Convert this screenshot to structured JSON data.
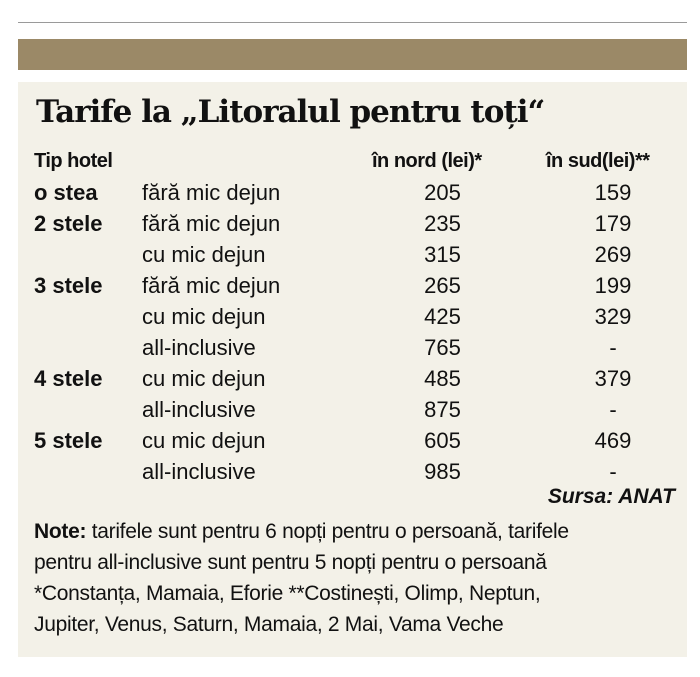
{
  "title": "Tarife la „Litoralul pentru toți“",
  "headers": {
    "type": "Tip hotel",
    "north": "în nord (lei)*",
    "south": "în sud(lei)**"
  },
  "rows": [
    {
      "type": "o stea",
      "option": "fără mic dejun",
      "north": "205",
      "south": "159"
    },
    {
      "type": "2 stele",
      "option": "fără mic dejun",
      "north": "235",
      "south": "179"
    },
    {
      "type": "",
      "option": "cu mic dejun",
      "north": "315",
      "south": "269"
    },
    {
      "type": "3 stele",
      "option": "fără mic dejun",
      "north": "265",
      "south": "199"
    },
    {
      "type": "",
      "option": "cu mic dejun",
      "north": "425",
      "south": "329"
    },
    {
      "type": "",
      "option": "all-inclusive",
      "north": "765",
      "south": "-"
    },
    {
      "type": "4 stele",
      "option": "cu mic dejun",
      "north": "485",
      "south": "379"
    },
    {
      "type": "",
      "option": "all-inclusive",
      "north": "875",
      "south": "-"
    },
    {
      "type": "5 stele",
      "option": "cu mic dejun",
      "north": "605",
      "south": "469"
    },
    {
      "type": "",
      "option": "all-inclusive",
      "north": "985",
      "south": "-"
    }
  ],
  "source": "Sursa: ANAT",
  "notes": {
    "label": "Note:",
    "line1": " tarifele sunt pentru 6 nopți pentru o persoană, tarifele",
    "line2": "pentru all-inclusive sunt pentru 5 nopți pentru o persoană",
    "line3": "*Constanța, Mamaia, Eforie **Costinești, Olimp, Neptun,",
    "line4": "Jupiter, Venus, Saturn, Mamaia, 2 Mai, Vama Veche"
  }
}
